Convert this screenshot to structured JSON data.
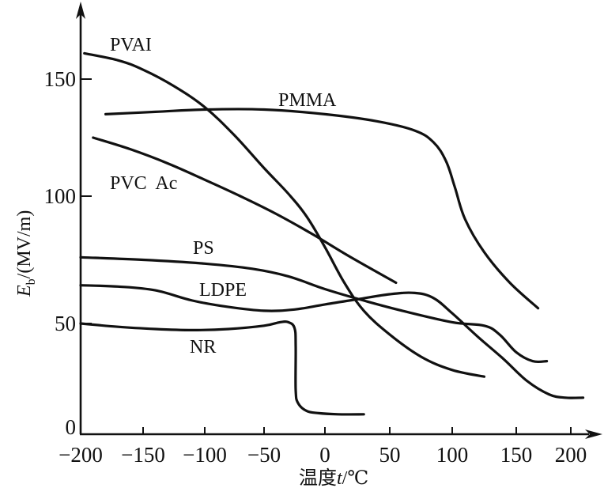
{
  "chart_data": {
    "type": "line",
    "title": "",
    "xlabel": "温度t/℃",
    "xlabel_parts": {
      "prefix": "温度",
      "var": "t",
      "unit": "/℃"
    },
    "ylabel": "Eb/(MV/m)",
    "ylabel_parts": {
      "var": "E",
      "sub": "b",
      "unit": "/(MV/m)"
    },
    "xlim": [
      -200,
      215
    ],
    "ylim": [
      0,
      175
    ],
    "xticks": [
      -200,
      -150,
      -100,
      -50,
      0,
      50,
      100,
      150,
      200
    ],
    "xtick_labels": [
      "−200",
      "−150",
      "−100",
      "−50",
      "0",
      "50",
      "100",
      "150",
      "200"
    ],
    "yticks": [
      0,
      50,
      100,
      150
    ],
    "ytick_labels": [
      "0",
      "50",
      "100",
      "150"
    ],
    "grid": false,
    "legend": "none (inline labels)",
    "series": [
      {
        "name": "PVAl",
        "label": "PVAI",
        "x": [
          -197,
          -170,
          -150,
          -125,
          -100,
          -75,
          -50,
          -30,
          -15,
          0,
          15,
          30,
          50,
          75,
          100,
          125
        ],
        "y": [
          161,
          158,
          154,
          147,
          138,
          126,
          112,
          101,
          92,
          80,
          66,
          55,
          45,
          35,
          29,
          26
        ]
      },
      {
        "name": "PMMA",
        "label": "PMMA",
        "x": [
          -180,
          -140,
          -100,
          -50,
          0,
          40,
          70,
          85,
          95,
          102,
          110,
          125,
          145,
          170
        ],
        "y": [
          135,
          136,
          137,
          137,
          135,
          132,
          128,
          123,
          115,
          104,
          91,
          78,
          66,
          56
        ]
      },
      {
        "name": "PVC Ac",
        "label": "PVC  Ac",
        "x": [
          -190,
          -160,
          -130,
          -100,
          -70,
          -40,
          -10,
          20,
          55
        ],
        "y": [
          125,
          120,
          114,
          107,
          100,
          93,
          85,
          76,
          66
        ]
      },
      {
        "name": "PS",
        "label": "PS",
        "x": [
          -200,
          -150,
          -100,
          -60,
          -30,
          0,
          30,
          60,
          100,
          125,
          137,
          150,
          165,
          178
        ],
        "y": [
          76,
          75,
          73.5,
          71.5,
          68.5,
          63.5,
          59,
          55,
          50.5,
          49,
          45,
          37,
          33,
          33
        ]
      },
      {
        "name": "LDPE",
        "label": "LDPE",
        "x": [
          -200,
          -170,
          -140,
          -110,
          -80,
          -50,
          -25,
          0,
          25,
          50,
          70,
          85,
          100,
          120,
          140,
          160,
          180,
          195,
          210
        ],
        "y": [
          65,
          64.5,
          63,
          59,
          56.5,
          55,
          55.5,
          57.5,
          59.5,
          61.5,
          62,
          60,
          54,
          44,
          34,
          24,
          18,
          16.5,
          16.5
        ]
      },
      {
        "name": "NR",
        "label": "NR",
        "x": [
          -200,
          -170,
          -140,
          -110,
          -80,
          -50,
          -37,
          -30,
          -25,
          -24,
          -24,
          -22,
          -15,
          -5,
          10,
          30
        ],
        "y": [
          50,
          48.5,
          47.5,
          47,
          47.5,
          49,
          50.5,
          50.5,
          48,
          40,
          20,
          14,
          10.5,
          9.5,
          9,
          9
        ]
      }
    ]
  }
}
